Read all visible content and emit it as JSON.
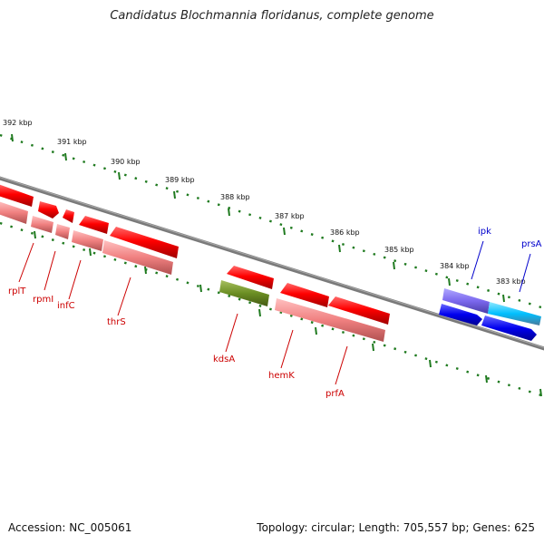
{
  "title": "Candidatus Blochmannia floridanus, complete genome",
  "accession": "Accession: NC_005061",
  "summary": "Topology: circular; Length: 705,557 bp; Genes: 625",
  "colors": {
    "backbone": "#7a7a7a",
    "tick": "#1f7a1f",
    "gene_red": "#ee0000",
    "gene_pink": "#f08080",
    "gene_olive": "#6b8e23",
    "gene_blue": "#0000ee",
    "gene_purple": "#7b68ee",
    "gene_cyan": "#00bfff",
    "label_red": "#cc0000",
    "label_blue": "#0000cc"
  },
  "kbp_labels": [
    "392 kbp",
    "391 kbp",
    "390 kbp",
    "389 kbp",
    "388 kbp",
    "387 kbp",
    "386 kbp",
    "385 kbp",
    "384 kbp",
    "383 kbp"
  ],
  "gene_labels": {
    "rplT": "rplT",
    "rpmI": "rpmI",
    "infC": "infC",
    "thrS": "thrS",
    "kdsA": "kdsA",
    "hemK": "hemK",
    "prfA": "prfA",
    "ipk": "ipk",
    "prsA": "prsA"
  }
}
